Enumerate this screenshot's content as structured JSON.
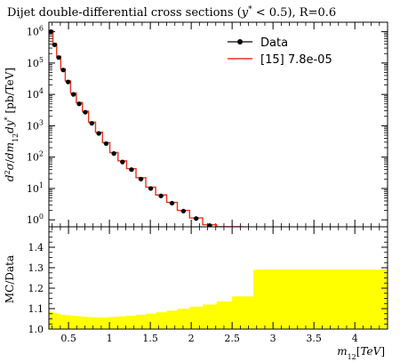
{
  "colors": {
    "data": "#000000",
    "mc": "#e8331c",
    "band": "#ffff00"
  },
  "chart_data": [
    {
      "panel": "main",
      "type": "line",
      "title": "Dijet double-differential cross sections (y* < 0.5), R=0.6",
      "xlabel": "",
      "ylabel": "d²σ/dm₁₂dy* [pb/TeV]",
      "yscale": "log",
      "ylim": [
        0.6,
        2000000
      ],
      "xlim": [
        0.26,
        4.4
      ],
      "yticks": [
        {
          "v": 1,
          "exp": "0"
        },
        {
          "v": 10,
          "exp": "1"
        },
        {
          "v": 100,
          "exp": "2"
        },
        {
          "v": 1000,
          "exp": "3"
        },
        {
          "v": 10000,
          "exp": "4"
        },
        {
          "v": 100000,
          "exp": "5"
        },
        {
          "v": 1000000,
          "exp": "6"
        }
      ],
      "legend": [
        {
          "key": "data",
          "label": "Data"
        },
        {
          "key": "mc",
          "label": "[15] 7.8e-05"
        }
      ],
      "legend_position": "top-right",
      "series": [
        {
          "name": "Data",
          "x": [
            0.285,
            0.33,
            0.38,
            0.435,
            0.495,
            0.56,
            0.63,
            0.705,
            0.785,
            0.87,
            0.96,
            1.055,
            1.16,
            1.27,
            1.385,
            1.505,
            1.63,
            1.765,
            1.905,
            2.06,
            2.225,
            2.405
          ],
          "y": [
            1000000,
            380000,
            150000,
            60000,
            25000,
            10000,
            5000,
            2700,
            1200,
            570,
            270,
            130,
            70,
            40,
            20,
            10,
            5.8,
            3.4,
            1.9,
            1.1,
            0.66,
            0.42
          ]
        },
        {
          "name": "[15] 7.8e-05",
          "edges": [
            0.26,
            0.31,
            0.355,
            0.405,
            0.46,
            0.525,
            0.595,
            0.67,
            0.745,
            0.83,
            0.915,
            1.005,
            1.105,
            1.21,
            1.325,
            1.445,
            1.565,
            1.7,
            1.83,
            1.98,
            2.14,
            2.31,
            2.5,
            2.64
          ],
          "values": [
            1100000,
            420000,
            165000,
            65000,
            27000,
            11000,
            5500,
            2900,
            1300,
            620,
            290,
            140,
            76,
            43,
            22,
            11,
            6.2,
            3.6,
            2.0,
            1.15,
            0.7,
            0.45,
            0.3
          ]
        }
      ]
    },
    {
      "panel": "ratio",
      "type": "area",
      "xlabel": "m₁₂[TeV]",
      "ylabel": "MC/Data",
      "ylim": [
        1.0,
        1.5
      ],
      "xlim": [
        0.26,
        4.4
      ],
      "yticks": [
        "1.0",
        "1.1",
        "1.2",
        "1.3",
        "1.4"
      ],
      "xticks": [
        "0.5",
        "1",
        "1.5",
        "2",
        "2.5",
        "3",
        "3.5",
        "4"
      ],
      "series": [
        {
          "name": "band",
          "edges": [
            0.26,
            0.31,
            0.355,
            0.405,
            0.46,
            0.525,
            0.595,
            0.67,
            0.745,
            0.83,
            0.915,
            1.005,
            1.105,
            1.21,
            1.325,
            1.445,
            1.565,
            1.7,
            1.83,
            1.98,
            2.14,
            2.31,
            2.5,
            2.76,
            4.4
          ],
          "values": [
            1.085,
            1.08,
            1.075,
            1.07,
            1.068,
            1.065,
            1.063,
            1.06,
            1.058,
            1.057,
            1.057,
            1.06,
            1.062,
            1.065,
            1.07,
            1.075,
            1.082,
            1.09,
            1.1,
            1.11,
            1.12,
            1.135,
            1.16,
            1.29
          ]
        }
      ]
    }
  ]
}
